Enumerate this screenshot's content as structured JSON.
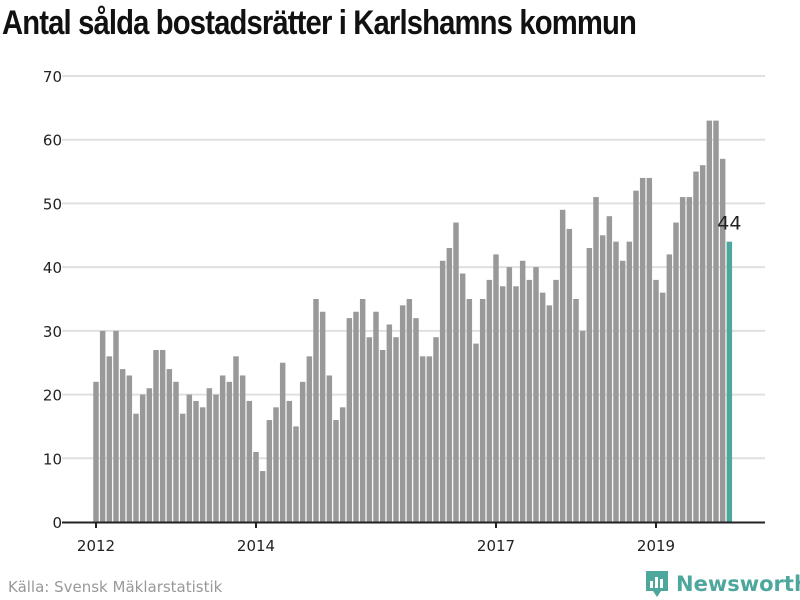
{
  "chart_data": {
    "type": "bar",
    "title": "Antal sålda bostadsrätter i Karlshamns kommun",
    "xlabel": "",
    "ylabel": "",
    "ylim": [
      0,
      70
    ],
    "yticks": [
      0,
      10,
      20,
      30,
      40,
      50,
      60,
      70
    ],
    "xtick_labels": [
      {
        "label": "2012",
        "index": 0
      },
      {
        "label": "2014",
        "index": 24
      },
      {
        "label": "2017",
        "index": 60
      },
      {
        "label": "2019",
        "index": 84
      }
    ],
    "start": "2012-01",
    "frequency": "monthly",
    "values": [
      22,
      30,
      26,
      30,
      24,
      23,
      17,
      20,
      21,
      27,
      27,
      24,
      22,
      17,
      20,
      19,
      18,
      21,
      20,
      23,
      22,
      26,
      23,
      19,
      11,
      8,
      16,
      18,
      25,
      19,
      15,
      22,
      26,
      35,
      33,
      23,
      16,
      18,
      32,
      33,
      35,
      29,
      33,
      27,
      31,
      29,
      34,
      35,
      32,
      26,
      26,
      29,
      41,
      43,
      47,
      39,
      35,
      28,
      35,
      38,
      42,
      37,
      40,
      37,
      41,
      38,
      40,
      36,
      34,
      38,
      49,
      46,
      35,
      30,
      43,
      51,
      45,
      48,
      44,
      41,
      44,
      52,
      54,
      54,
      38,
      36,
      42,
      47,
      51,
      51,
      55,
      56,
      63,
      63,
      57,
      44
    ],
    "highlight_label": "44",
    "grid": true,
    "colors": {
      "bar": "#999999",
      "highlight": "#4ea79c"
    }
  },
  "footer": {
    "source": "Källa: Svensk Mäklarstatistik",
    "brand": "Newsworthy"
  }
}
